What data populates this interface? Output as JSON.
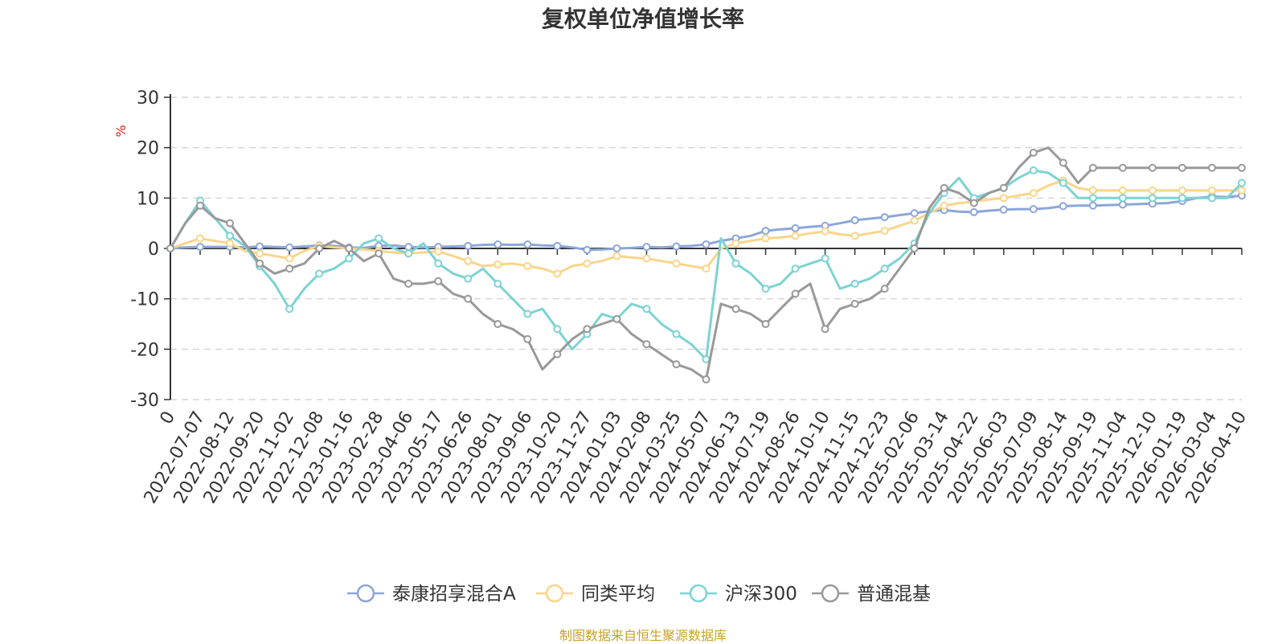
{
  "title": "复权单位净值增长率",
  "source": "制图数据来自恒生聚源数据库",
  "chart_data": {
    "type": "line",
    "title": "复权单位净值增长率",
    "ylabel": "%",
    "ylim": [
      -30,
      30
    ],
    "yticks": [
      -30,
      -20,
      -10,
      0,
      10,
      20,
      30
    ],
    "grid": "horizontal dashed",
    "legend_position": "bottom-center",
    "x_tick_labels": [
      "0",
      "2022-07-07",
      "2022-08-12",
      "2022-09-20",
      "2022-11-02",
      "2022-12-08",
      "2023-01-16",
      "2023-02-28",
      "2023-04-06",
      "2023-05-17",
      "2023-06-26",
      "2023-08-01",
      "2023-09-06",
      "2023-10-20",
      "2023-11-27",
      "2024-01-03",
      "2024-02-08",
      "2024-03-25",
      "2024-05-07",
      "2024-06-13",
      "2024-07-19",
      "2024-08-26",
      "2024-10-10",
      "2024-11-15",
      "2024-12-23",
      "2025-02-06",
      "2025-03-14",
      "2025-04-22",
      "2025-06-03",
      "2025-07-09",
      "2025-08-14",
      "2025-09-19",
      "2025-11-04",
      "2025-12-10",
      "2026-01-19",
      "2026-03-04",
      "2026-04-10"
    ],
    "x": [
      0,
      0.5,
      1,
      1.5,
      2,
      2.5,
      3,
      3.5,
      4,
      4.5,
      5,
      5.5,
      6,
      6.5,
      7,
      7.5,
      8,
      8.5,
      9,
      9.5,
      10,
      10.5,
      11,
      11.5,
      12,
      12.5,
      13,
      13.5,
      14,
      14.5,
      15,
      15.5,
      16,
      16.5,
      17,
      17.5,
      18,
      18.5,
      19,
      19.5,
      20,
      20.5,
      21,
      21.5,
      22,
      22.5,
      23,
      23.5,
      24,
      24.5,
      25,
      25.5,
      26,
      26.5,
      27,
      27.5,
      28,
      28.5,
      29,
      29.5,
      30,
      30.5,
      31,
      31.5,
      32,
      32.5,
      33,
      33.5,
      34,
      34.5,
      35,
      35.5,
      36
    ],
    "series": [
      {
        "name": "泰康招享混合A",
        "color": "#8ca6d9",
        "values": [
          0,
          0.2,
          0.3,
          0.3,
          0.3,
          0.2,
          0.4,
          0.3,
          0.2,
          0.4,
          0.6,
          0.5,
          0.2,
          0.1,
          0.5,
          0.6,
          0.3,
          0.2,
          0.3,
          0.4,
          0.5,
          0.7,
          0.8,
          0.7,
          0.8,
          0.6,
          0.5,
          0.2,
          -0.3,
          -0.2,
          0.0,
          0.1,
          0.3,
          0.2,
          0.4,
          0.5,
          0.8,
          1.5,
          2.0,
          2.5,
          3.5,
          3.8,
          4.0,
          4.3,
          4.5,
          5.0,
          5.6,
          5.9,
          6.2,
          6.6,
          7.0,
          7.4,
          7.6,
          7.3,
          7.2,
          7.5,
          7.7,
          7.8,
          7.8,
          8.0,
          8.4,
          8.5,
          8.5,
          8.6,
          8.7,
          8.8,
          8.9,
          9.0,
          9.4,
          10.0,
          10.3,
          10.2,
          10.5
        ]
      },
      {
        "name": "同类平均",
        "color": "#f9d58a",
        "values": [
          0,
          1.0,
          2.0,
          1.5,
          1.0,
          -0.5,
          -1.0,
          -1.5,
          -2.0,
          -0.5,
          0.5,
          0.2,
          0.0,
          -0.2,
          -0.5,
          -0.8,
          -1.0,
          -0.8,
          -0.6,
          -1.5,
          -2.5,
          -3.5,
          -3.2,
          -3.0,
          -3.5,
          -4.0,
          -5.0,
          -3.5,
          -3.0,
          -2.5,
          -1.5,
          -1.8,
          -2.0,
          -2.5,
          -3.0,
          -3.5,
          -4.0,
          0.0,
          1.0,
          1.5,
          2.0,
          2.2,
          2.5,
          3.0,
          3.4,
          2.8,
          2.5,
          3.0,
          3.5,
          4.5,
          5.5,
          7.0,
          8.5,
          9.0,
          9.3,
          9.7,
          10.0,
          10.5,
          11.0,
          12.5,
          13.5,
          12.0,
          11.5,
          11.5,
          11.5,
          11.5,
          11.5,
          11.5,
          11.5,
          11.5,
          11.5,
          11.5,
          11.5
        ]
      },
      {
        "name": "沪深300",
        "color": "#7dd3d3",
        "values": [
          0,
          5.0,
          9.5,
          6.0,
          2.5,
          0.5,
          -3.5,
          -7.0,
          -12.0,
          -8.0,
          -5.0,
          -4.0,
          -2.0,
          1.0,
          2.0,
          0.0,
          -1.0,
          1.0,
          -3.0,
          -5.0,
          -6.0,
          -4.0,
          -7.0,
          -10.0,
          -13.0,
          -12.0,
          -16.0,
          -20.0,
          -17.0,
          -13.0,
          -14.0,
          -11.0,
          -12.0,
          -15.0,
          -17.0,
          -19.0,
          -22.0,
          2.0,
          -3.0,
          -5.0,
          -8.0,
          -7.0,
          -4.0,
          -3.0,
          -2.0,
          -8.0,
          -7.0,
          -6.0,
          -4.0,
          -2.0,
          1.0,
          7.0,
          11.0,
          14.0,
          10.0,
          11.0,
          12.0,
          14.0,
          15.5,
          15.0,
          13.0,
          10.0,
          10.0,
          10.0,
          10.0,
          10.0,
          10.0,
          10.0,
          10.0,
          10.0,
          10.0,
          10.0,
          13.0
        ]
      },
      {
        "name": "普通混基",
        "color": "#999999",
        "values": [
          0,
          5.0,
          8.5,
          6.0,
          5.0,
          1.0,
          -3.0,
          -5.0,
          -4.0,
          -3.0,
          0.0,
          1.5,
          0.0,
          -2.5,
          -1.0,
          -6.0,
          -7.0,
          -7.0,
          -6.5,
          -9.0,
          -10.0,
          -13.0,
          -15.0,
          -16.0,
          -18.0,
          -24.0,
          -21.0,
          -18.0,
          -16.0,
          -15.0,
          -14.0,
          -17.0,
          -19.0,
          -21.0,
          -23.0,
          -24.0,
          -26.0,
          -11.0,
          -12.0,
          -13.0,
          -15.0,
          -12.0,
          -9.0,
          -7.0,
          -16.0,
          -12.0,
          -11.0,
          -10.0,
          -8.0,
          -4.0,
          0.0,
          8.0,
          12.0,
          11.0,
          9.0,
          11.0,
          12.0,
          16.0,
          19.0,
          20.0,
          17.0,
          13.0,
          16.0,
          16.0,
          16.0,
          16.0,
          16.0,
          16.0,
          16.0,
          16.0,
          16.0,
          16.0,
          16.0
        ]
      }
    ]
  }
}
